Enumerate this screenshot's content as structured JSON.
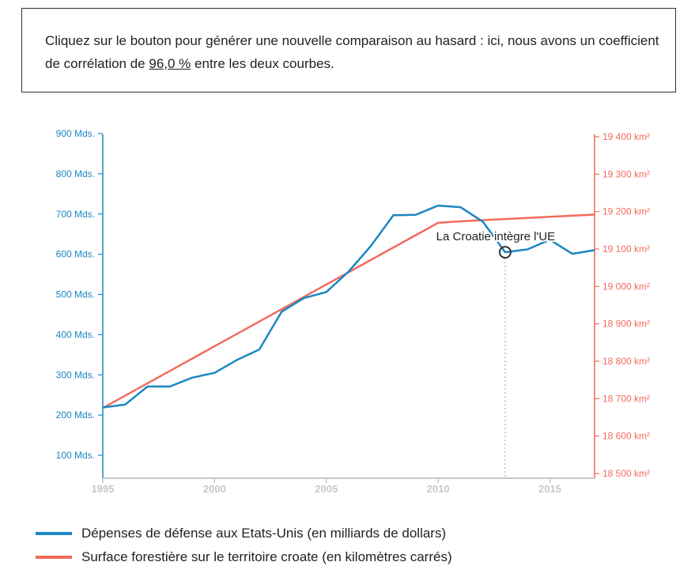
{
  "info": {
    "text_before": "Cliquez sur le bouton pour générer une nouvelle comparaison au hasard : ici, nous avons un coefficient de corrélation de ",
    "percentage": "96,0 %",
    "text_after": " entre les deux courbes."
  },
  "colors": {
    "us_defense": "#1a87c3",
    "croatia_forest": "#f26b5b",
    "axis_x": "#c4c8cc",
    "annotation_circle": "#333333"
  },
  "chart_data": {
    "type": "line",
    "x": [
      1995,
      1996,
      1997,
      1998,
      1999,
      2000,
      2001,
      2002,
      2003,
      2004,
      2005,
      2006,
      2007,
      2008,
      2009,
      2010,
      2011,
      2012,
      2013,
      2014,
      2015,
      2016,
      2017
    ],
    "x_ticks": [
      1995,
      2000,
      2005,
      2010,
      2015
    ],
    "x_tick_labels": [
      "1995",
      "2000",
      "2005",
      "2010",
      "2015"
    ],
    "xlim": [
      1995,
      2017
    ],
    "series": [
      {
        "name": "Dépenses de défense aux Etats-Unis (en milliards de dollars)",
        "axis": "left",
        "color": "#1a87c3",
        "values": [
          219,
          226,
          271,
          271,
          293,
          305,
          337,
          363,
          457,
          491,
          506,
          557,
          621,
          697,
          698,
          721,
          717,
          681,
          605,
          612,
          636,
          601,
          610
        ]
      },
      {
        "name": "Surface forestière sur le territoire croate (en kilomètres carrés)",
        "axis": "right",
        "color": "#f26b5b",
        "values": [
          18675,
          18708,
          18741,
          18774,
          18807,
          18840,
          18873,
          18906,
          18939,
          18972,
          19005,
          19038,
          19071,
          19104,
          19137,
          19170,
          19174,
          19177,
          19180,
          19183,
          19186,
          19189,
          19192
        ]
      }
    ],
    "y_left": {
      "ticks": [
        100,
        200,
        300,
        400,
        500,
        600,
        700,
        800,
        900
      ],
      "tick_labels": [
        "100 Mds.",
        "200 Mds.",
        "300 Mds.",
        "400 Mds.",
        "500 Mds.",
        "600 Mds.",
        "700 Mds.",
        "800 Mds.",
        "900 Mds."
      ],
      "ylim": [
        100,
        900
      ]
    },
    "y_right": {
      "ticks": [
        18500,
        18600,
        18700,
        18800,
        18900,
        19000,
        19100,
        19200,
        19300,
        19400
      ],
      "tick_labels": [
        "18 500 km²",
        "18 600 km²",
        "18 700 km²",
        "18 800 km²",
        "18 900 km²",
        "19 000 km²",
        "19 100 km²",
        "19 200 km²",
        "19 300 km²",
        "19 400 km²"
      ],
      "ylim": [
        18500,
        19400
      ]
    },
    "annotation": {
      "label": "La Croatie intègre l'UE",
      "x": 2013,
      "series_index": 0
    }
  }
}
